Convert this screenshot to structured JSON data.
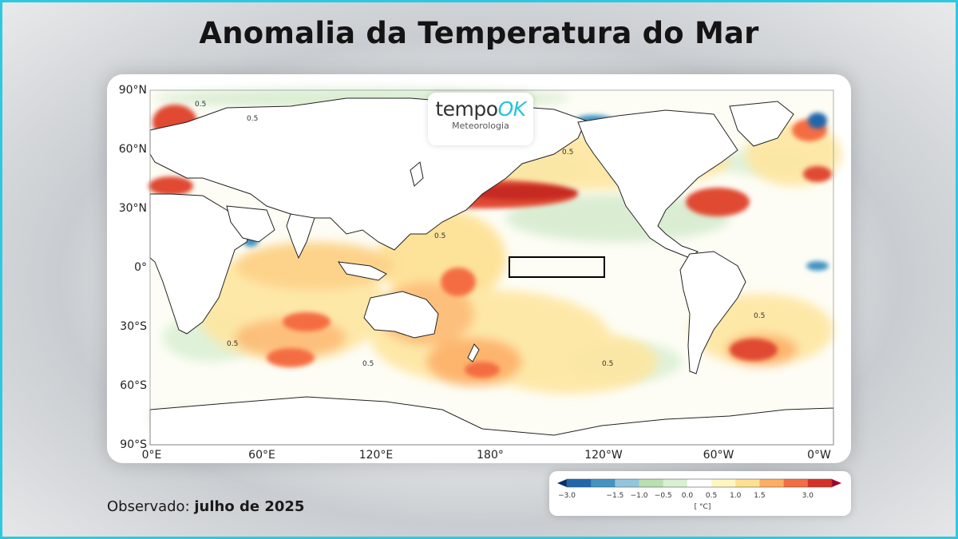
{
  "title": "Anomalia da Temperatura do Mar",
  "logo": {
    "brand": "tempo",
    "brand_accent": "OK",
    "subtitle": "Meteorologia"
  },
  "map": {
    "lat_labels": [
      "90°N",
      "60°N",
      "30°N",
      "0°",
      "30°S",
      "60°S",
      "90°S"
    ],
    "lon_labels": [
      "0°E",
      "60°E",
      "120°E",
      "180°",
      "120°W",
      "60°W",
      "0°W"
    ],
    "contour_label": "0.5",
    "highlight_region": "Niño 3.4"
  },
  "observed": {
    "prefix": "Observado:",
    "period": "julho de 2025"
  },
  "colorbar": {
    "ticks": [
      "−3.0",
      "−1.5",
      "−1.0",
      "−0.5",
      "0.0",
      "0.5",
      "1.0",
      "1.5",
      "3.0"
    ],
    "unit": "[ °C]",
    "colors": [
      "#08306b",
      "#2166ac",
      "#4393c3",
      "#92c5de",
      "#b8e0b0",
      "#d9f0d3",
      "#ffffff",
      "#fff7c0",
      "#fee090",
      "#fdae61",
      "#f46d43",
      "#d73027",
      "#a50026"
    ]
  }
}
